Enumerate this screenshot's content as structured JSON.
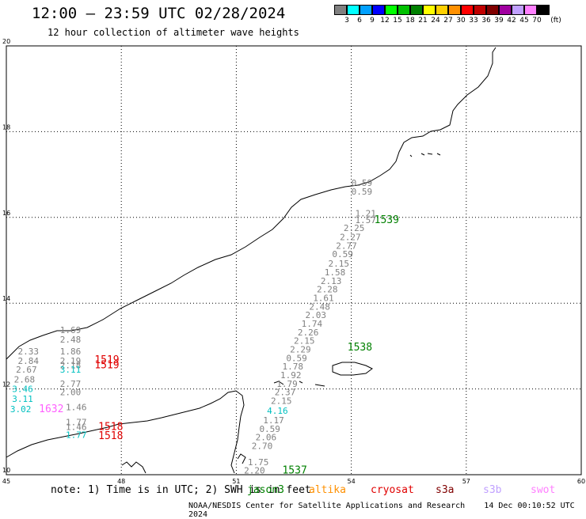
{
  "header": {
    "title": "12:00 — 23:59 UTC 02/28/2024",
    "subtitle": "12 hour collection of altimeter wave heights"
  },
  "legend": {
    "unit": "(ft)",
    "scale": [
      {
        "label": "3",
        "color": "#808080"
      },
      {
        "label": "6",
        "color": "#00ffff"
      },
      {
        "label": "9",
        "color": "#00a0ff"
      },
      {
        "label": "12",
        "color": "#0000ff"
      },
      {
        "label": "15",
        "color": "#00ff00"
      },
      {
        "label": "18",
        "color": "#00c000"
      },
      {
        "label": "21",
        "color": "#008000"
      },
      {
        "label": "24",
        "color": "#ffff00"
      },
      {
        "label": "27",
        "color": "#ffd000"
      },
      {
        "label": "30",
        "color": "#ff9000"
      },
      {
        "label": "33",
        "color": "#ff0000"
      },
      {
        "label": "36",
        "color": "#c00000"
      },
      {
        "label": "39",
        "color": "#800000"
      },
      {
        "label": "42",
        "color": "#a000a0"
      },
      {
        "label": "45",
        "color": "#c0a0ff"
      },
      {
        "label": "70",
        "color": "#ff80ff"
      },
      {
        "label": "",
        "color": "#000000"
      }
    ]
  },
  "axes": {
    "lon_ticks": [
      "45",
      "48",
      "51",
      "54",
      "57",
      "60"
    ],
    "lat_ticks": [
      "20",
      "18",
      "16",
      "14",
      "12",
      "10"
    ]
  },
  "map": {
    "lon_range": [
      45,
      60
    ],
    "lat_range": [
      10,
      20
    ],
    "wave_heights": [
      {
        "lon": 54.0,
        "lat": 16.73,
        "text": "0.59",
        "color": "#808080"
      },
      {
        "lon": 54.0,
        "lat": 16.53,
        "text": "0.59",
        "color": "#808080"
      },
      {
        "lon": 54.1,
        "lat": 16.02,
        "text": "1.21",
        "color": "#808080"
      },
      {
        "lon": 54.1,
        "lat": 15.87,
        "text": "1.57",
        "color": "#808080"
      },
      {
        "lon": 54.6,
        "lat": 15.87,
        "text": "1539",
        "color": "#008000"
      },
      {
        "lon": 53.8,
        "lat": 15.68,
        "text": "2.25",
        "color": "#808080"
      },
      {
        "lon": 53.7,
        "lat": 15.47,
        "text": "2.27",
        "color": "#808080"
      },
      {
        "lon": 53.6,
        "lat": 15.27,
        "text": "2.77",
        "color": "#808080"
      },
      {
        "lon": 53.5,
        "lat": 15.07,
        "text": "0.59",
        "color": "#808080"
      },
      {
        "lon": 53.4,
        "lat": 14.85,
        "text": "2.15",
        "color": "#808080"
      },
      {
        "lon": 53.3,
        "lat": 14.65,
        "text": "1.58",
        "color": "#808080"
      },
      {
        "lon": 53.2,
        "lat": 14.45,
        "text": "2.13",
        "color": "#808080"
      },
      {
        "lon": 53.1,
        "lat": 14.25,
        "text": "2.28",
        "color": "#808080"
      },
      {
        "lon": 53.0,
        "lat": 14.05,
        "text": "1.61",
        "color": "#808080"
      },
      {
        "lon": 52.9,
        "lat": 13.85,
        "text": "2.48",
        "color": "#808080"
      },
      {
        "lon": 52.8,
        "lat": 13.65,
        "text": "2.03",
        "color": "#808080"
      },
      {
        "lon": 52.7,
        "lat": 13.45,
        "text": "1.74",
        "color": "#808080"
      },
      {
        "lon": 52.6,
        "lat": 13.25,
        "text": "2.26",
        "color": "#808080"
      },
      {
        "lon": 52.5,
        "lat": 13.05,
        "text": "2.15",
        "color": "#808080"
      },
      {
        "lon": 53.9,
        "lat": 12.9,
        "text": "1538",
        "color": "#008000"
      },
      {
        "lon": 52.4,
        "lat": 12.85,
        "text": "2.29",
        "color": "#808080"
      },
      {
        "lon": 52.3,
        "lat": 12.65,
        "text": "0.59",
        "color": "#808080"
      },
      {
        "lon": 52.2,
        "lat": 12.45,
        "text": "1.78",
        "color": "#808080"
      },
      {
        "lon": 52.15,
        "lat": 12.25,
        "text": "1.92",
        "color": "#808080"
      },
      {
        "lon": 52.05,
        "lat": 12.05,
        "text": "1.79",
        "color": "#808080"
      },
      {
        "lon": 52.0,
        "lat": 11.85,
        "text": "2.37",
        "color": "#808080"
      },
      {
        "lon": 51.9,
        "lat": 11.65,
        "text": "2.15",
        "color": "#808080"
      },
      {
        "lon": 51.8,
        "lat": 11.42,
        "text": "4.16",
        "color": "#00c0c0"
      },
      {
        "lon": 51.7,
        "lat": 11.2,
        "text": "1.17",
        "color": "#808080"
      },
      {
        "lon": 51.6,
        "lat": 11.0,
        "text": "0.59",
        "color": "#808080"
      },
      {
        "lon": 51.5,
        "lat": 10.8,
        "text": "2.06",
        "color": "#808080"
      },
      {
        "lon": 51.4,
        "lat": 10.6,
        "text": "2.70",
        "color": "#808080"
      },
      {
        "lon": 51.3,
        "lat": 10.22,
        "text": "1.75",
        "color": "#808080"
      },
      {
        "lon": 51.2,
        "lat": 10.03,
        "text": "2.20",
        "color": "#808080"
      },
      {
        "lon": 52.2,
        "lat": 10.03,
        "text": "1537",
        "color": "#008000"
      },
      {
        "lon": 46.4,
        "lat": 13.3,
        "text": "1.69",
        "color": "#808080"
      },
      {
        "lon": 46.4,
        "lat": 13.08,
        "text": "2.48",
        "color": "#808080"
      },
      {
        "lon": 46.4,
        "lat": 12.8,
        "text": "1.86",
        "color": "#808080"
      },
      {
        "lon": 46.4,
        "lat": 12.58,
        "text": "2.19",
        "color": "#808080"
      },
      {
        "lon": 46.4,
        "lat": 12.48,
        "text": "2.18",
        "color": "#808080"
      },
      {
        "lon": 46.4,
        "lat": 12.38,
        "text": "3.11",
        "color": "#00c0c0"
      },
      {
        "lon": 46.4,
        "lat": 12.05,
        "text": "2.77",
        "color": "#808080"
      },
      {
        "lon": 46.4,
        "lat": 11.85,
        "text": "2.00",
        "color": "#808080"
      },
      {
        "lon": 47.3,
        "lat": 12.6,
        "text": "1519",
        "color": "#e00000"
      },
      {
        "lon": 47.3,
        "lat": 12.48,
        "text": "1519",
        "color": "#e00000"
      },
      {
        "lon": 45.3,
        "lat": 12.8,
        "text": "2.33",
        "color": "#808080"
      },
      {
        "lon": 45.3,
        "lat": 12.58,
        "text": "2.84",
        "color": "#808080"
      },
      {
        "lon": 45.25,
        "lat": 12.38,
        "text": "2.67",
        "color": "#808080"
      },
      {
        "lon": 45.2,
        "lat": 12.15,
        "text": "2.68",
        "color": "#808080"
      },
      {
        "lon": 45.15,
        "lat": 11.93,
        "text": "3.46",
        "color": "#00c0c0"
      },
      {
        "lon": 45.15,
        "lat": 11.7,
        "text": "3.11",
        "color": "#00c0c0"
      },
      {
        "lon": 45.1,
        "lat": 11.46,
        "text": "3.02",
        "color": "#00c0c0"
      },
      {
        "lon": 45.85,
        "lat": 11.46,
        "text": "1632",
        "color": "#ff60ff"
      },
      {
        "lon": 46.55,
        "lat": 11.5,
        "text": "1.46",
        "color": "#808080"
      },
      {
        "lon": 46.55,
        "lat": 11.15,
        "text": "1.77",
        "color": "#808080"
      },
      {
        "lon": 46.55,
        "lat": 11.04,
        "text": "1.46",
        "color": "#808080"
      },
      {
        "lon": 46.55,
        "lat": 10.86,
        "text": "1.77",
        "color": "#00c0c0"
      },
      {
        "lon": 47.4,
        "lat": 11.04,
        "text": "1518",
        "color": "#e00000"
      },
      {
        "lon": 47.4,
        "lat": 10.83,
        "text": "1518",
        "color": "#e00000"
      }
    ]
  },
  "footer": {
    "note": "note: 1) Time is in UTC; 2) SWH is in feet",
    "missions": [
      {
        "label": "jason3",
        "color": "#008000"
      },
      {
        "label": "altika",
        "color": "#ff9000"
      },
      {
        "label": "cryosat",
        "color": "#e00000"
      },
      {
        "label": "s3a",
        "color": "#800000"
      },
      {
        "label": "s3b",
        "color": "#c0a0ff"
      },
      {
        "label": "swot",
        "color": "#ff80ff"
      }
    ],
    "credit": "NOAA/NESDIS Center for Satellite Applications and Research",
    "timestamp": "14 Dec 00:10:52 UTC 2024"
  }
}
